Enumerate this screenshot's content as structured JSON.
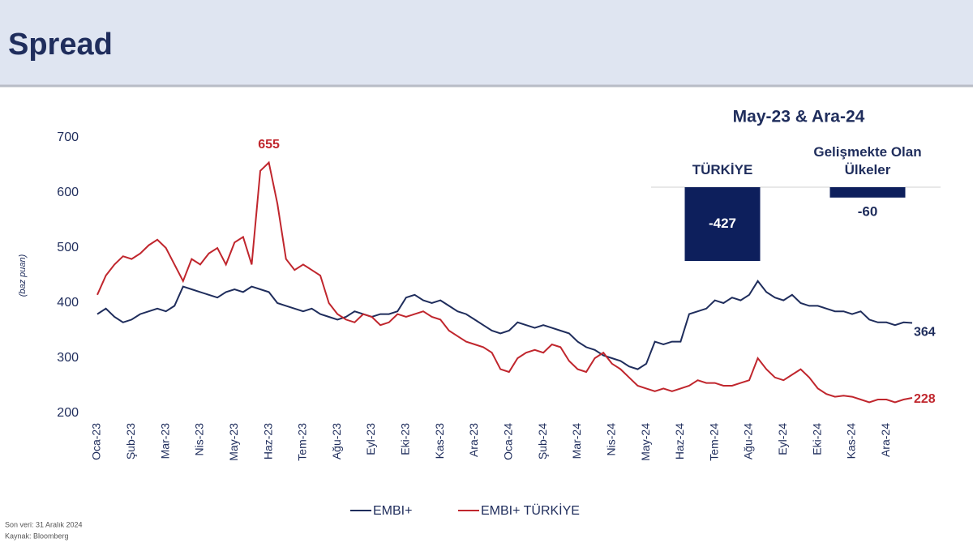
{
  "header": {
    "title": "Spread"
  },
  "chart_data": [
    {
      "type": "line",
      "y_label": "(baz puan)",
      "categories": [
        "Oca-23",
        null,
        null,
        null,
        "Şub-23",
        null,
        null,
        null,
        "Mar-23",
        null,
        null,
        null,
        "Nis-23",
        null,
        null,
        null,
        "May-23",
        null,
        null,
        null,
        "Haz-23",
        null,
        null,
        null,
        "Tem-23",
        null,
        null,
        null,
        "Ağu-23",
        null,
        null,
        null,
        "Eyl-23",
        null,
        null,
        null,
        "Eki-23",
        null,
        null,
        null,
        "Kas-23",
        null,
        null,
        null,
        "Ara-23",
        null,
        null,
        null,
        "Oca-24",
        null,
        null,
        null,
        "Şub-24",
        null,
        null,
        null,
        "Mar-24",
        null,
        null,
        null,
        "Nis-24",
        null,
        null,
        null,
        "May-24",
        null,
        null,
        null,
        "Haz-24",
        null,
        null,
        null,
        "Tem-24",
        null,
        null,
        null,
        "Ağu-24",
        null,
        null,
        null,
        "Eyl-24",
        null,
        null,
        null,
        "Eki-24",
        null,
        null,
        null,
        "Kas-24",
        null,
        null,
        null,
        "Ara-24",
        null,
        null,
        null
      ],
      "series": [
        {
          "name": "EMBI+",
          "color": "#1f2d5c",
          "values": [
            380,
            390,
            375,
            365,
            370,
            380,
            385,
            390,
            385,
            395,
            430,
            425,
            420,
            415,
            410,
            420,
            425,
            420,
            430,
            425,
            420,
            400,
            395,
            390,
            385,
            390,
            380,
            375,
            370,
            375,
            385,
            380,
            375,
            380,
            380,
            385,
            410,
            415,
            405,
            400,
            405,
            395,
            385,
            380,
            370,
            360,
            350,
            345,
            350,
            365,
            360,
            355,
            360,
            355,
            350,
            345,
            330,
            320,
            315,
            305,
            300,
            295,
            285,
            280,
            290,
            330,
            325,
            330,
            330,
            380,
            385,
            390,
            405,
            400,
            410,
            405,
            415,
            440,
            420,
            410,
            405,
            415,
            400,
            395,
            395,
            390,
            385,
            385,
            380,
            385,
            370,
            365,
            365,
            360,
            365,
            364
          ]
        },
        {
          "name": "EMBI+ TÜRKİYE",
          "color": "#c0262d",
          "values": [
            415,
            450,
            470,
            485,
            480,
            490,
            505,
            515,
            500,
            470,
            440,
            480,
            470,
            490,
            500,
            470,
            510,
            520,
            470,
            640,
            655,
            580,
            480,
            460,
            470,
            460,
            450,
            400,
            380,
            370,
            365,
            380,
            375,
            360,
            365,
            380,
            375,
            380,
            385,
            375,
            370,
            350,
            340,
            330,
            325,
            320,
            310,
            280,
            275,
            300,
            310,
            315,
            310,
            325,
            320,
            295,
            280,
            275,
            300,
            310,
            290,
            280,
            265,
            250,
            245,
            240,
            245,
            240,
            245,
            250,
            260,
            255,
            255,
            250,
            250,
            255,
            260,
            300,
            280,
            265,
            260,
            270,
            280,
            265,
            245,
            235,
            230,
            232,
            230,
            225,
            220,
            225,
            225,
            220,
            225,
            228
          ]
        }
      ],
      "ylim": [
        200,
        700
      ],
      "yticks": [
        200,
        300,
        400,
        500,
        600,
        700
      ],
      "grid": false,
      "legend": "bottom"
    },
    {
      "type": "bar",
      "title": "May-23 & Ara-24",
      "categories": [
        "TÜRKİYE",
        "Gelişmekte Olan Ülkeler"
      ],
      "values": [
        -427,
        -60
      ],
      "color": "#0d1f5c"
    }
  ],
  "footnotes": [
    "Son veri: 31 Aralık 2024",
    "Kaynak: Bloomberg"
  ]
}
